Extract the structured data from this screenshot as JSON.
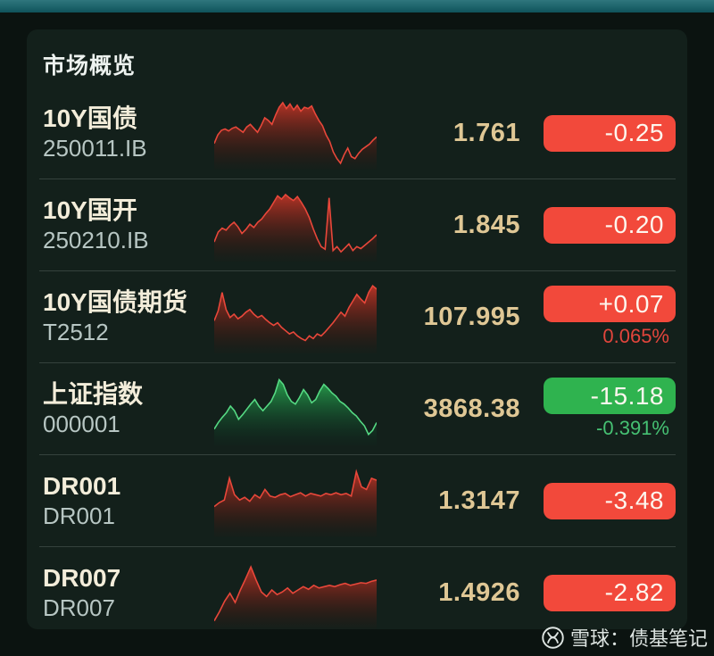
{
  "header": {
    "title": "市场概览"
  },
  "watermark": {
    "text": "雪球：债基笔记"
  },
  "colors": {
    "red": {
      "line": "#e8473a",
      "top": "rgba(193,53,39,0.93)",
      "bottom": "rgba(70,16,10,0.04)"
    },
    "green": {
      "line": "#55d983",
      "top": "rgba(42,172,82,0.93)",
      "bottom": "rgba(10,62,38,0.05)"
    }
  },
  "rows": [
    {
      "name": "10Y国债",
      "code": "250011.IB",
      "value": "1.761",
      "change": "-0.25",
      "pct": "",
      "badge_bg": "#f2493b",
      "pct_color": "#e2453c",
      "spark": {
        "tone": "red",
        "points": [
          35,
          48,
          55,
          57,
          54,
          58,
          60,
          56,
          52,
          60,
          64,
          58,
          52,
          62,
          74,
          70,
          64,
          78,
          90,
          97,
          88,
          95,
          86,
          93,
          84,
          90,
          88,
          92,
          80,
          70,
          62,
          48,
          38,
          22,
          12,
          5,
          18,
          28,
          15,
          12,
          20,
          26,
          30,
          34,
          40,
          45
        ]
      }
    },
    {
      "name": "10Y国开",
      "code": "250210.IB",
      "value": "1.845",
      "change": "-0.20",
      "pct": "",
      "badge_bg": "#f2493b",
      "pct_color": "#e2453c",
      "spark": {
        "tone": "red",
        "points": [
          25,
          40,
          46,
          43,
          50,
          55,
          48,
          38,
          44,
          52,
          47,
          55,
          60,
          68,
          75,
          85,
          95,
          90,
          97,
          92,
          88,
          94,
          85,
          75,
          62,
          45,
          30,
          18,
          14,
          92,
          12,
          18,
          10,
          16,
          22,
          12,
          18,
          15,
          20,
          25,
          30,
          36
        ]
      }
    },
    {
      "name": "10Y国债期货",
      "code": "T2512",
      "value": "107.995",
      "change": "+0.07",
      "pct": "0.065%",
      "badge_bg": "#f2493b",
      "pct_color": "#e2453c",
      "spark": {
        "tone": "red",
        "points": [
          45,
          60,
          88,
          62,
          50,
          55,
          48,
          52,
          58,
          62,
          55,
          50,
          53,
          47,
          42,
          38,
          42,
          35,
          30,
          25,
          28,
          22,
          18,
          15,
          22,
          18,
          25,
          22,
          28,
          35,
          42,
          50,
          58,
          52,
          65,
          75,
          85,
          78,
          72,
          88,
          98,
          93
        ]
      }
    },
    {
      "name": "上证指数",
      "code": "000001",
      "value": "3868.38",
      "change": "-15.18",
      "pct": "-0.391%",
      "badge_bg": "#2fb34f",
      "pct_color": "#46c173",
      "spark": {
        "tone": "green",
        "points": [
          20,
          30,
          38,
          45,
          55,
          48,
          35,
          42,
          50,
          58,
          65,
          55,
          48,
          55,
          62,
          75,
          95,
          88,
          72,
          62,
          58,
          68,
          80,
          72,
          60,
          65,
          78,
          88,
          82,
          75,
          70,
          62,
          58,
          52,
          45,
          40,
          32,
          25,
          12,
          18,
          30
        ]
      }
    },
    {
      "name": "DR001",
      "code": "DR001",
      "value": "1.3147",
      "change": "-3.48",
      "pct": "",
      "badge_bg": "#f2493b",
      "pct_color": "#e2453c",
      "spark": {
        "tone": "red",
        "points": [
          42,
          48,
          52,
          85,
          60,
          52,
          56,
          50,
          60,
          55,
          68,
          58,
          56,
          60,
          62,
          57,
          60,
          63,
          58,
          62,
          60,
          58,
          62,
          60,
          63,
          60,
          62,
          58,
          95,
          72,
          68,
          85,
          82
        ]
      }
    },
    {
      "name": "DR007",
      "code": "DR007",
      "value": "1.4926",
      "change": "-2.82",
      "pct": "",
      "badge_bg": "#f2493b",
      "pct_color": "#e2453c",
      "spark": {
        "tone": "red",
        "points": [
          8,
          22,
          38,
          50,
          36,
          55,
          72,
          90,
          70,
          52,
          45,
          55,
          48,
          52,
          58,
          50,
          55,
          60,
          56,
          62,
          58,
          60,
          62,
          60,
          63,
          65,
          62,
          64,
          66,
          65,
          68,
          70
        ]
      }
    }
  ]
}
